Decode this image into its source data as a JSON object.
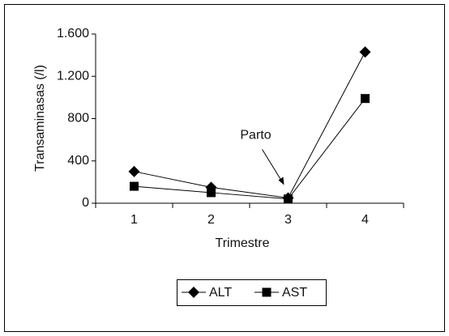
{
  "chart_data": {
    "type": "line",
    "categories": [
      "1",
      "2",
      "3",
      "4"
    ],
    "series": [
      {
        "name": "ALT",
        "color": "#000000",
        "marker": "diamond",
        "values": [
          300,
          150,
          50,
          1430
        ]
      },
      {
        "name": "AST",
        "color": "#000000",
        "marker": "square",
        "values": [
          160,
          100,
          40,
          990
        ]
      }
    ],
    "xlabel": "Trimestre",
    "ylabel": "Transaminasas (/l)",
    "ylim": [
      0,
      1600
    ],
    "yticks": [
      0,
      400,
      800,
      {
        "value": 1200,
        "label": "1.200"
      },
      {
        "value": 1600,
        "label": "1.600"
      }
    ],
    "annotations": [
      {
        "text": "Parto",
        "category": 2,
        "series": 0
      }
    ],
    "legend": "bottom",
    "grid": false
  }
}
